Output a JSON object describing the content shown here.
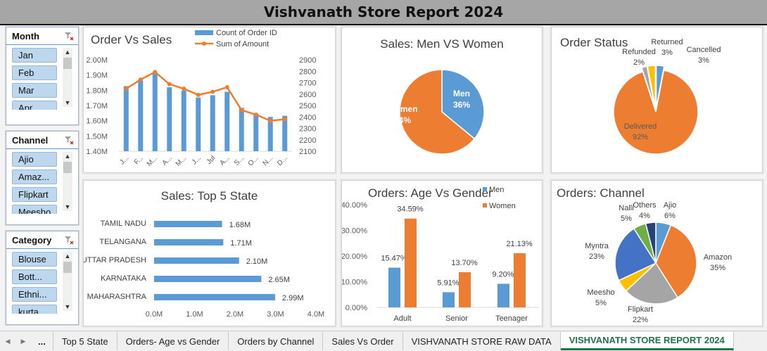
{
  "title": "Vishvanath Store Report 2024",
  "slicers": {
    "month": {
      "label": "Month",
      "items": [
        "Jan",
        "Feb",
        "Mar",
        "Apr"
      ]
    },
    "channel": {
      "label": "Channel",
      "items": [
        "Ajio",
        "Amaz...",
        "Flipkart",
        "Meesho"
      ]
    },
    "category": {
      "label": "Category",
      "items": [
        "Blouse",
        "Bott...",
        "Ethni...",
        "kurta"
      ]
    }
  },
  "chart_data": [
    {
      "id": "order-vs-sales",
      "type": "bar+line",
      "title": "Order Vs Sales",
      "categories": [
        "Jan",
        "Feb",
        "Mar",
        "Apr",
        "May",
        "Jun",
        "Jul",
        "Aug",
        "Sep",
        "Oct",
        "Nov",
        "Dec"
      ],
      "tick_labels": [
        "J...",
        "F...",
        "M...",
        "A...",
        "M...",
        "J...",
        "Jul",
        "A...",
        "S...",
        "O...",
        "N...",
        "D..."
      ],
      "series": [
        {
          "name": "Count of Order ID",
          "type": "bar",
          "axis": "right",
          "color": "#5b9bd5",
          "values": [
            2670,
            2720,
            2790,
            2660,
            2630,
            2570,
            2590,
            2620,
            2480,
            2430,
            2400,
            2410
          ]
        },
        {
          "name": "Sum of Amount",
          "type": "line",
          "axis": "left",
          "color": "#ed7d31",
          "values": [
            1.81,
            1.87,
            1.92,
            1.84,
            1.81,
            1.77,
            1.79,
            1.82,
            1.67,
            1.64,
            1.6,
            1.61
          ]
        }
      ],
      "y_left": {
        "min": 1.4,
        "max": 2.0,
        "ticks": [
          "2.00M",
          "1.90M",
          "1.80M",
          "1.70M",
          "1.60M",
          "1.50M",
          "1.40M"
        ]
      },
      "y_right": {
        "min": 2100,
        "max": 2900,
        "ticks": [
          "2900",
          "2800",
          "2700",
          "2600",
          "2500",
          "2400",
          "2300",
          "2200",
          "2100"
        ]
      },
      "legend": "top"
    },
    {
      "id": "sales-men-women",
      "type": "pie",
      "title": "Sales: Men VS Women",
      "slices": [
        {
          "label": "Men",
          "value": 36,
          "pct": "36%",
          "color": "#5b9bd5"
        },
        {
          "label": "Women",
          "value": 64,
          "pct": "64%",
          "color": "#ed7d31"
        }
      ]
    },
    {
      "id": "order-status",
      "type": "pie",
      "title": "Order Status",
      "slices": [
        {
          "label": "Delivered",
          "value": 92,
          "pct": "92%",
          "color": "#ed7d31"
        },
        {
          "label": "Refunded",
          "value": 2,
          "pct": "2%",
          "color": "#a5a5a5"
        },
        {
          "label": "Returned",
          "value": 3,
          "pct": "3%",
          "color": "#ffc000"
        },
        {
          "label": "Cancelled",
          "value": 3,
          "pct": "3%",
          "color": "#5b9bd5"
        }
      ]
    },
    {
      "id": "top5-state",
      "type": "bar",
      "orientation": "horizontal",
      "title": "Sales: Top 5 State",
      "categories": [
        "TAMIL NADU",
        "TELANGANA",
        "UTTAR PRADESH",
        "KARNATAKA",
        "MAHARASHTRA"
      ],
      "values": [
        1.68,
        1.71,
        2.1,
        2.65,
        2.99
      ],
      "value_labels": [
        "1.68M",
        "1.71M",
        "2.10M",
        "2.65M",
        "2.99M"
      ],
      "x_ticks": [
        "0.0M",
        "1.0M",
        "2.0M",
        "3.0M",
        "4.0M"
      ],
      "xlim": [
        0,
        4
      ],
      "color": "#5b9bd5"
    },
    {
      "id": "orders-age-gender",
      "type": "bar",
      "title": "Orders: Age Vs Gender",
      "categories": [
        "Adult",
        "Senior",
        "Teenager"
      ],
      "series": [
        {
          "name": "Men",
          "color": "#5b9bd5",
          "values": [
            15.47,
            5.91,
            9.2
          ],
          "labels": [
            "15.47%",
            "5.91%",
            "9.20%"
          ]
        },
        {
          "name": "Women",
          "color": "#ed7d31",
          "values": [
            34.59,
            13.7,
            21.13
          ],
          "labels": [
            "34.59%",
            "13.70%",
            "21.13%"
          ]
        }
      ],
      "y_ticks": [
        "40.00%",
        "30.00%",
        "20.00%",
        "10.00%",
        "0.00%"
      ],
      "ylim": [
        0,
        40
      ],
      "legend": "top-right"
    },
    {
      "id": "orders-channel",
      "type": "pie",
      "title": "Orders: Channel",
      "slices": [
        {
          "label": "Ajio",
          "value": 6,
          "pct": "6%",
          "color": "#5b9bd5"
        },
        {
          "label": "Amazon",
          "value": 35,
          "pct": "35%",
          "color": "#ed7d31"
        },
        {
          "label": "Flipkart",
          "value": 22,
          "pct": "22%",
          "color": "#a5a5a5"
        },
        {
          "label": "Meesho",
          "value": 5,
          "pct": "5%",
          "color": "#ffc000"
        },
        {
          "label": "Myntra",
          "value": 23,
          "pct": "23%",
          "color": "#4472c4"
        },
        {
          "label": "Nalli",
          "value": 5,
          "pct": "5%",
          "color": "#70ad47"
        },
        {
          "label": "Others",
          "value": 4,
          "pct": "4%",
          "color": "#264478"
        }
      ]
    }
  ],
  "tabs": {
    "more": "...",
    "items": [
      "Top 5 State",
      "Orders- Age vs Gender",
      "Orders by Channel",
      "Sales Vs Order",
      "VISHVANATH STORE RAW DATA",
      "VISHVANATH STORE REPORT 2024"
    ],
    "active": "VISHVANATH STORE REPORT 2024"
  }
}
